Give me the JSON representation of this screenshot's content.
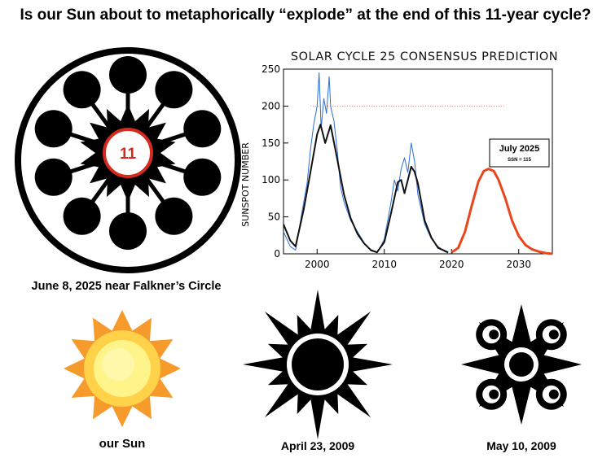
{
  "headline": "Is our Sun about to metaphorically “explode” at the end of this 11-year cycle?",
  "glyph": {
    "center_number": "11",
    "caption": "June 8, 2025 near Falkner’s Circle"
  },
  "suns": [
    {
      "caption": "our Sun"
    },
    {
      "caption": "April 23, 2009"
    },
    {
      "caption": "May 10, 2009"
    }
  ],
  "colors": {
    "accent_red": "#d42a1e",
    "prediction": "#e8471c",
    "observed": "#2a6fd6",
    "smoothed": "#111111"
  },
  "chart_data": {
    "type": "line",
    "title": "SOLAR CYCLE 25 CONSENSUS PREDICTION",
    "xlabel": "",
    "ylabel": "SUNSPOT NUMBER",
    "xlim": [
      1995,
      2035
    ],
    "ylim": [
      0,
      250
    ],
    "x_ticks": [
      2000,
      2010,
      2020,
      2030
    ],
    "y_ticks": [
      0,
      50,
      100,
      150,
      200,
      250
    ],
    "reference_line_y": 200,
    "annotation": {
      "line1": "July 2025",
      "line2": "SSN = 115"
    },
    "series": [
      {
        "name": "smoothed",
        "x": [
          1995,
          1996,
          1996.8,
          1998,
          1999,
          2000,
          2000.5,
          2001.2,
          2002,
          2003,
          2004,
          2005,
          2006,
          2007,
          2008,
          2008.9,
          2010,
          2011,
          2012,
          2012.5,
          2013,
          2014,
          2014.5,
          2015,
          2016,
          2017,
          2018,
          2019.5
        ],
        "values": [
          40,
          18,
          10,
          60,
          110,
          162,
          175,
          150,
          174,
          128,
          80,
          48,
          27,
          14,
          5,
          2,
          16,
          55,
          97,
          100,
          82,
          118,
          111,
          95,
          45,
          22,
          8,
          2
        ]
      },
      {
        "name": "observed",
        "x": [
          1995,
          1996,
          1996.8,
          1998,
          1998.5,
          1999,
          1999.5,
          2000,
          2000.3,
          2000.6,
          2001,
          2001.4,
          2001.8,
          2002,
          2002.5,
          2003,
          2003.5,
          2004,
          2005,
          2006,
          2007,
          2008,
          2009,
          2010,
          2011,
          2011.5,
          2012,
          2012.5,
          2013,
          2013.5,
          2014,
          2014.5,
          2015,
          2016,
          2017,
          2018,
          2019,
          2019.5
        ],
        "values": [
          30,
          10,
          5,
          70,
          95,
          140,
          175,
          200,
          245,
          170,
          210,
          190,
          240,
          200,
          180,
          140,
          90,
          70,
          45,
          30,
          15,
          4,
          2,
          20,
          70,
          100,
          85,
          115,
          130,
          110,
          150,
          125,
          80,
          40,
          20,
          10,
          3,
          1
        ]
      },
      {
        "name": "prediction",
        "x": [
          2020,
          2021,
          2022,
          2023,
          2024,
          2024.8,
          2025.5,
          2026.3,
          2027,
          2028,
          2029,
          2030,
          2031,
          2032,
          2033,
          2034,
          2035
        ],
        "values": [
          2,
          8,
          30,
          65,
          98,
          112,
          115,
          112,
          100,
          75,
          45,
          24,
          12,
          6,
          3,
          1,
          0
        ]
      }
    ]
  }
}
